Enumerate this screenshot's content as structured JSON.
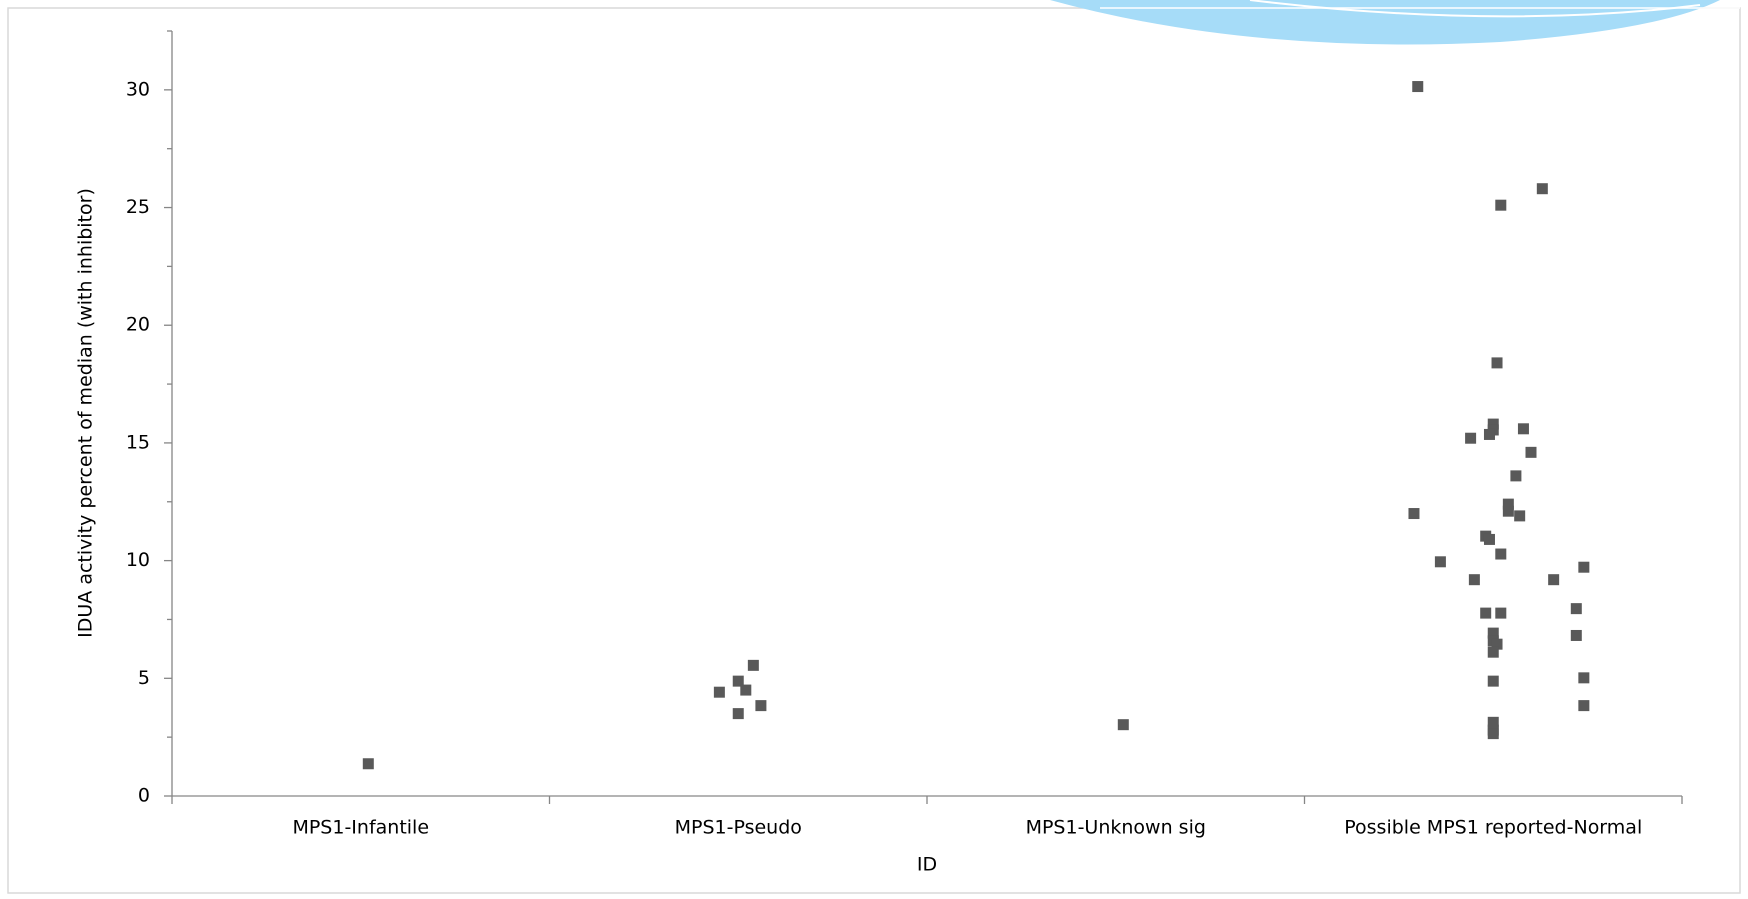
{
  "chart_data": {
    "type": "scatter",
    "x_label": "ID",
    "y_label": "IDUA activity percent of median (with inhibitor)",
    "categories": [
      "MPS1-Infantile",
      "MPS1-Pseudo",
      "MPS1-Unknown sig",
      "Possible MPS1 reported-Normal"
    ],
    "category_positions": [
      1,
      2,
      3,
      4
    ],
    "xlim": [
      0.5,
      4.5
    ],
    "xticks": [
      0.5,
      1.5,
      2.5,
      3.5,
      4.5
    ],
    "ylim": [
      0,
      32.5
    ],
    "yticks": [
      0,
      5,
      10,
      15,
      20,
      25,
      30
    ],
    "yminorticks": [
      2.5,
      7.5,
      12.5,
      17.5,
      22.5,
      27.5,
      32.5
    ],
    "grid": false,
    "series": [
      {
        "color": "#595959",
        "x": [
          1.02,
          1.95,
          2.0,
          2.04,
          2.02,
          2.0,
          2.06,
          3.02,
          3.8,
          4.02,
          4.13,
          4.01,
          4.0,
          4.0,
          3.99,
          3.94,
          4.08,
          4.1,
          4.06,
          4.04,
          4.04,
          4.07,
          3.79,
          3.98,
          3.99,
          4.02,
          3.86,
          3.95,
          4.16,
          4.24,
          3.98,
          4.02,
          4.22,
          4.0,
          4.0,
          4.01,
          4.0,
          4.22,
          4.24,
          4.0,
          4.24,
          4.0,
          4.0,
          4.0
        ],
        "values": [
          1.37,
          4.41,
          4.88,
          5.55,
          4.5,
          3.5,
          3.84,
          3.03,
          30.14,
          25.1,
          25.8,
          18.4,
          15.8,
          15.55,
          15.36,
          15.2,
          15.6,
          14.6,
          13.6,
          12.4,
          12.1,
          11.9,
          12.0,
          11.04,
          10.9,
          10.28,
          9.95,
          9.19,
          9.19,
          9.72,
          7.77,
          7.77,
          7.96,
          6.92,
          6.59,
          6.45,
          6.11,
          6.82,
          5.02,
          4.88,
          3.84,
          3.13,
          2.8,
          2.65
        ]
      }
    ]
  }
}
